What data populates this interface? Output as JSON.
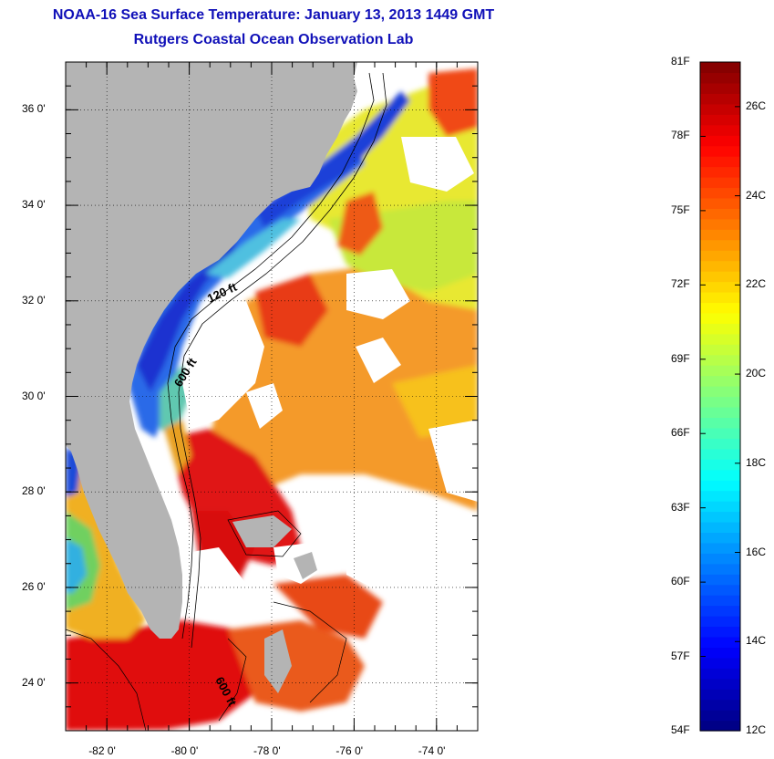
{
  "title": {
    "line1": "NOAA-16 Sea Surface Temperature:  January 13, 2013 1449 GMT",
    "line2": "Rutgers Coastal Ocean Observation Lab"
  },
  "map": {
    "lat_labels": [
      "36 0'",
      "34 0'",
      "32 0'",
      "30 0'",
      "28 0'",
      "26 0'",
      "24 0'"
    ],
    "lon_labels": [
      "-82 0'",
      "-80 0'",
      "-78 0'",
      "-76 0'",
      "-74 0'"
    ],
    "lat_values": [
      36,
      34,
      32,
      30,
      28,
      26,
      24
    ],
    "lon_values": [
      -82,
      -80,
      -78,
      -76,
      -74
    ],
    "lat_range": [
      23,
      37
    ],
    "lon_range": [
      -83,
      -73
    ],
    "isobath_labels": [
      "120 ft",
      "600 ft",
      "600 ft"
    ],
    "colors": {
      "land": "#b4b4b4",
      "cloud": "#ffffff"
    }
  },
  "colorbar": {
    "fahrenheit_labels": [
      "81F",
      "78F",
      "75F",
      "72F",
      "69F",
      "66F",
      "63F",
      "60F",
      "57F",
      "54F"
    ],
    "celsius_labels": [
      "26C",
      "24C",
      "22C",
      "20C",
      "18C",
      "16C",
      "14C",
      "12C"
    ],
    "range_f": [
      54,
      81
    ],
    "range_c": [
      12,
      27
    ],
    "colormap": "jet"
  }
}
